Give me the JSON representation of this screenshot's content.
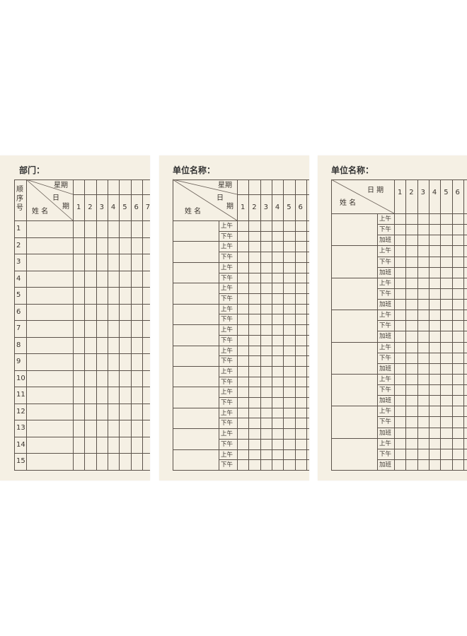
{
  "cards": [
    {
      "title": "部门：",
      "header": {
        "week": "星期",
        "day_a": "日",
        "day_b": "期",
        "name": "姓  名",
        "index": [
          "顺",
          "序",
          "号"
        ]
      },
      "days": [
        "1",
        "2",
        "3",
        "4",
        "5",
        "6",
        "7"
      ],
      "rows": [
        "1",
        "2",
        "3",
        "4",
        "5",
        "6",
        "7",
        "8",
        "9",
        "10",
        "11",
        "12",
        "13",
        "14",
        "15"
      ]
    },
    {
      "title": "单位名称：",
      "header": {
        "week": "星期",
        "day_a": "日",
        "day_b": "期",
        "name": "姓  名"
      },
      "days": [
        "1",
        "2",
        "3",
        "4",
        "5",
        "6"
      ],
      "person_count": 12,
      "slots": [
        "上午",
        "下午"
      ]
    },
    {
      "title": "单位名称：",
      "header": {
        "date": "日   期",
        "name": "姓  名"
      },
      "days": [
        "1",
        "2",
        "3",
        "4",
        "5",
        "6"
      ],
      "person_count": 8,
      "slots": [
        "上午",
        "下午",
        "加班"
      ]
    }
  ],
  "colors": {
    "paper": "#f5f0e4",
    "line": "#5b524a",
    "page": "#ffffff"
  }
}
